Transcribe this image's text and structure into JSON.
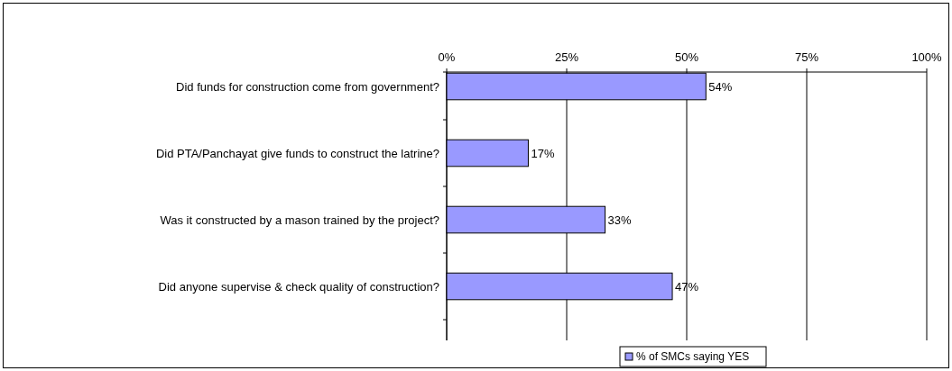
{
  "chart_data": {
    "type": "bar",
    "orientation": "horizontal",
    "categories": [
      "Did funds for construction come from government?",
      "Did PTA/Panchayat give funds to construct the latrine?",
      "Was it constructed by a mason trained by the project?",
      "Did anyone supervise & check quality of construction?"
    ],
    "series": [
      {
        "name": "% of SMCs saying YES",
        "color": "#9999ff",
        "values": [
          54,
          17,
          33,
          47
        ],
        "value_labels": [
          "54%",
          "17%",
          "33%",
          "47%"
        ]
      }
    ],
    "xlim": [
      0,
      100
    ],
    "xticks": [
      {
        "value": 0,
        "label": "0%"
      },
      {
        "value": 25,
        "label": "25%"
      },
      {
        "value": 50,
        "label": "50%"
      },
      {
        "value": 75,
        "label": "75%"
      },
      {
        "value": 100,
        "label": "100%"
      }
    ],
    "grid": "x",
    "legend": "bottom"
  }
}
